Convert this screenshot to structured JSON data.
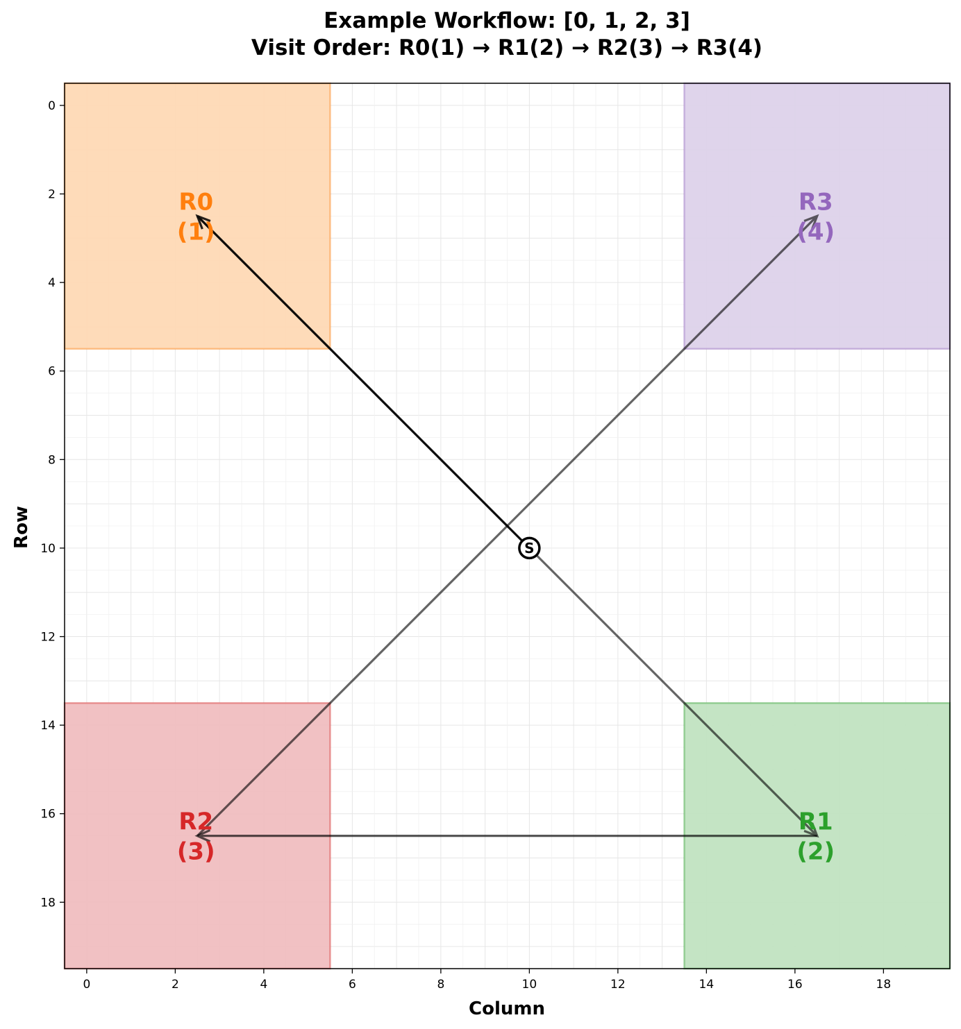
{
  "chart_data": {
    "type": "scatter",
    "title_line1": "Example Workflow: [0, 1, 2, 3]",
    "title_line2": "Visit Order: R0(1) → R1(2) → R2(3) → R3(4)",
    "xlabel": "Column",
    "ylabel": "Row",
    "xlim": [
      -0.5,
      19.5
    ],
    "ylim": [
      19.5,
      -0.5
    ],
    "y_inverted": true,
    "xticks": [
      0,
      2,
      4,
      6,
      8,
      10,
      12,
      14,
      16,
      18
    ],
    "yticks": [
      0,
      2,
      4,
      6,
      8,
      10,
      12,
      14,
      16,
      18
    ],
    "grid": true,
    "regions": [
      {
        "name": "R0",
        "order_label": "(1)",
        "cols": [
          -0.5,
          5.5
        ],
        "rows": [
          -0.5,
          5.5
        ],
        "center": [
          2.5,
          2.5
        ],
        "color": "#ff7f0e",
        "fill": "#fed8b4"
      },
      {
        "name": "R1",
        "order_label": "(2)",
        "cols": [
          13.5,
          19.5
        ],
        "rows": [
          13.5,
          19.5
        ],
        "center": [
          16.5,
          16.5
        ],
        "color": "#2ca02c",
        "fill": "#bfe2bf"
      },
      {
        "name": "R2",
        "order_label": "(3)",
        "cols": [
          -0.5,
          5.5
        ],
        "rows": [
          13.5,
          19.5
        ],
        "center": [
          2.5,
          16.5
        ],
        "color": "#d62728",
        "fill": "#f0bcbe"
      },
      {
        "name": "R3",
        "order_label": "(4)",
        "cols": [
          13.5,
          19.5
        ],
        "rows": [
          -0.5,
          5.5
        ],
        "center": [
          16.5,
          2.5
        ],
        "color": "#9467bd",
        "fill": "#ddd1ea"
      }
    ],
    "start": {
      "label": "S",
      "col": 10,
      "row": 10
    },
    "path": [
      {
        "from": [
          10,
          10
        ],
        "to": [
          2.5,
          2.5
        ],
        "opacity": 0.85
      },
      {
        "from": [
          2.5,
          2.5
        ],
        "to": [
          16.5,
          16.5
        ],
        "opacity": 0.6
      },
      {
        "from": [
          16.5,
          16.5
        ],
        "to": [
          2.5,
          16.5
        ],
        "opacity": 0.65
      },
      {
        "from": [
          2.5,
          16.5
        ],
        "to": [
          16.5,
          2.5
        ],
        "opacity": 0.6
      }
    ]
  }
}
